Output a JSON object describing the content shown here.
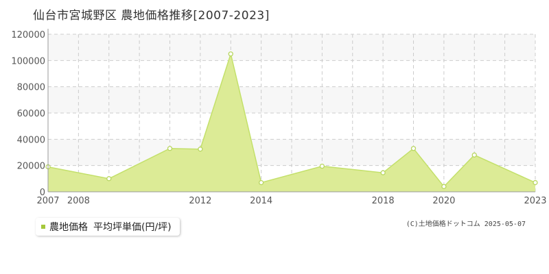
{
  "title": "仙台市宮城野区 農地価格推移[2007-2023]",
  "legend": {
    "label": "農地価格",
    "unit": "平均坪単価(円/坪)"
  },
  "copyright": "(C)土地価格ドットコム 2025-05-07",
  "colors": {
    "fill": "#dceb96",
    "line": "#c3e06a",
    "point_stroke": "#b8d660",
    "grid": "#cccccc",
    "band": "#f7f7f7",
    "swatch": "#a5c83c"
  },
  "chart_data": {
    "type": "area",
    "x": [
      2007,
      2008,
      2009,
      2010,
      2011,
      2012,
      2013,
      2014,
      2015,
      2016,
      2017,
      2018,
      2019,
      2020,
      2021,
      2022,
      2023
    ],
    "values": [
      19000,
      null,
      10000,
      null,
      33000,
      32500,
      105000,
      7000,
      null,
      19500,
      null,
      14500,
      33000,
      4000,
      28000,
      null,
      7000
    ],
    "xlim": [
      2007,
      2023
    ],
    "ylim": [
      0,
      120000
    ],
    "ytick_labels": [
      "0",
      "20000",
      "40000",
      "60000",
      "80000",
      "100000",
      "120000"
    ],
    "xtick_labels": [
      "2007",
      "2008",
      "2012",
      "2014",
      "2018",
      "2020",
      "2023"
    ],
    "grid": true
  }
}
